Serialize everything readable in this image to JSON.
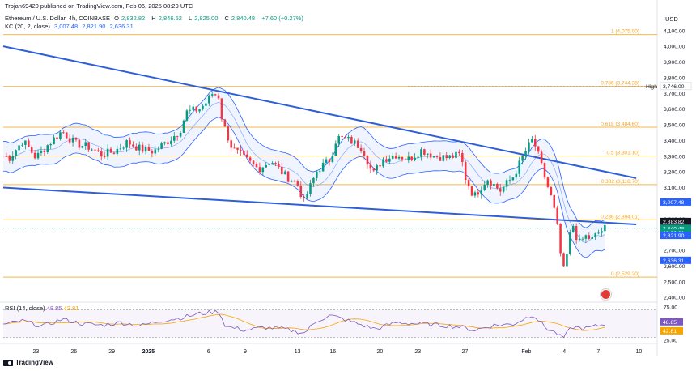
{
  "header": {
    "published": "Trojan69420 published on TradingView.com, Feb 06, 2025 08:29 UTC",
    "symbol": "Ethereum / U.S. Dollar, 4h, COINBASE",
    "ohlc": {
      "o_label": "O",
      "o": "2,832.82",
      "h_label": "H",
      "h": "2,846.52",
      "l_label": "L",
      "l": "2,825.00",
      "c_label": "C",
      "c": "2,840.48",
      "change": "+7.60 (+0.27%)"
    },
    "kc": {
      "label": "KC (20, 2, close)",
      "v1": "3,007.48",
      "v2": "2,821.90",
      "v3": "2,636.31"
    }
  },
  "currency": "USD",
  "price_axis": {
    "ticks": [
      4100,
      4000,
      3900,
      3800,
      3700,
      3600,
      3500,
      3400,
      3300,
      3200,
      3100,
      3000,
      2900,
      2800,
      2700,
      2600,
      2500,
      2400
    ],
    "tick_labels": [
      "4,100.00",
      "4,000.00",
      "3,900.00",
      "3,800.00",
      "3,700.00",
      "3,600.00",
      "3,500.00",
      "3,400.00",
      "3,300.00",
      "3,200.00",
      "3,100.00",
      "3,000.00",
      "2,900.00",
      "2,800.00",
      "2,700.00",
      "2,600.00",
      "2,500.00",
      "2,400.00"
    ],
    "badges": [
      {
        "text": "3,746.00",
        "value": 3746,
        "color": "#ffffff",
        "text_color": "#131722"
      },
      {
        "text": "3,007.48",
        "value": 3007.48,
        "color": "#2962ff",
        "text_color": "#ffffff"
      },
      {
        "text": "2,883.82",
        "value": 2883.82,
        "color": "#131722",
        "text_color": "#ffffff"
      },
      {
        "text": "2,840.48",
        "value": 2840.48,
        "color": "#089981",
        "text_color": "#ffffff"
      },
      {
        "text": "03:30:01",
        "value": 2812,
        "color": "#089981",
        "text_color": "#ffffff"
      },
      {
        "text": "2,821.90",
        "value": 2795,
        "color": "#2962ff",
        "text_color": "#ffffff"
      },
      {
        "text": "2,636.31",
        "value": 2636.31,
        "color": "#2962ff",
        "text_color": "#ffffff"
      }
    ],
    "high_label": "High"
  },
  "fib_levels": [
    {
      "label": "1 (4,075.00)",
      "value": 4075
    },
    {
      "label": "0.786 (3,744.28)",
      "value": 3744.28
    },
    {
      "label": "0.618 (3,484.60)",
      "value": 3484.6
    },
    {
      "label": "0.5 (3,301.10)",
      "value": 3301.1
    },
    {
      "label": "0.382 (3,118.70)",
      "value": 3118.7
    },
    {
      "label": "0.236 (2,894.01)",
      "value": 2894.01
    },
    {
      "label": "0 (2,529.20)",
      "value": 2529.2
    }
  ],
  "date_axis": [
    "23",
    "26",
    "29",
    "2025",
    "6",
    "9",
    "13",
    "16",
    "20",
    "23",
    "27",
    "Feb",
    "4",
    "7",
    "10"
  ],
  "rsi": {
    "label": "RSI (14, close)",
    "value": "48.85",
    "ma": "42.81",
    "axis_labels": [
      "75.00",
      "25.00"
    ],
    "axis_values": [
      75,
      25
    ]
  },
  "chart_data": {
    "type": "candlestick",
    "timeframe": "4h",
    "ylim": [
      2380,
      4140
    ],
    "trendlines": [
      {
        "from": {
          "x": 0,
          "y": 4000
        },
        "to": {
          "x": 1,
          "y": 3160
        }
      },
      {
        "from": {
          "x": 0,
          "y": 3100
        },
        "to": {
          "x": 1,
          "y": 2865
        }
      }
    ],
    "price_path": [
      [
        0,
        3300
      ],
      [
        0.01,
        3290
      ],
      [
        0.03,
        3400
      ],
      [
        0.05,
        3290
      ],
      [
        0.07,
        3380
      ],
      [
        0.09,
        3460
      ],
      [
        0.11,
        3380
      ],
      [
        0.13,
        3360
      ],
      [
        0.15,
        3310
      ],
      [
        0.17,
        3330
      ],
      [
        0.19,
        3390
      ],
      [
        0.21,
        3345
      ],
      [
        0.23,
        3330
      ],
      [
        0.25,
        3390
      ],
      [
        0.27,
        3460
      ],
      [
        0.28,
        3580
      ],
      [
        0.3,
        3600
      ],
      [
        0.31,
        3640
      ],
      [
        0.32,
        3700
      ],
      [
        0.33,
        3680
      ],
      [
        0.335,
        3520
      ],
      [
        0.35,
        3350
      ],
      [
        0.37,
        3280
      ],
      [
        0.39,
        3220
      ],
      [
        0.41,
        3270
      ],
      [
        0.43,
        3180
      ],
      [
        0.45,
        3120
      ],
      [
        0.46,
        3010
      ],
      [
        0.48,
        3210
      ],
      [
        0.5,
        3280
      ],
      [
        0.51,
        3420
      ],
      [
        0.53,
        3400
      ],
      [
        0.55,
        3350
      ],
      [
        0.565,
        3180
      ],
      [
        0.58,
        3280
      ],
      [
        0.6,
        3310
      ],
      [
        0.62,
        3280
      ],
      [
        0.64,
        3340
      ],
      [
        0.66,
        3300
      ],
      [
        0.68,
        3290
      ],
      [
        0.7,
        3310
      ],
      [
        0.705,
        3180
      ],
      [
        0.72,
        3040
      ],
      [
        0.74,
        3160
      ],
      [
        0.76,
        3080
      ],
      [
        0.78,
        3170
      ],
      [
        0.8,
        3340
      ],
      [
        0.81,
        3410
      ],
      [
        0.82,
        3280
      ],
      [
        0.83,
        3140
      ],
      [
        0.84,
        3010
      ],
      [
        0.85,
        2790
      ],
      [
        0.855,
        2540
      ],
      [
        0.86,
        2620
      ],
      [
        0.87,
        2880
      ],
      [
        0.88,
        2740
      ],
      [
        0.89,
        2790
      ],
      [
        0.9,
        2770
      ],
      [
        0.91,
        2810
      ],
      [
        0.92,
        2840
      ]
    ],
    "rsi_path": [
      [
        0,
        48
      ],
      [
        0.03,
        55
      ],
      [
        0.06,
        45
      ],
      [
        0.09,
        58
      ],
      [
        0.12,
        50
      ],
      [
        0.15,
        47
      ],
      [
        0.18,
        52
      ],
      [
        0.21,
        46
      ],
      [
        0.24,
        55
      ],
      [
        0.27,
        60
      ],
      [
        0.3,
        68
      ],
      [
        0.33,
        72
      ],
      [
        0.34,
        45
      ],
      [
        0.37,
        38
      ],
      [
        0.4,
        43
      ],
      [
        0.43,
        40
      ],
      [
        0.46,
        33
      ],
      [
        0.48,
        55
      ],
      [
        0.5,
        65
      ],
      [
        0.52,
        58
      ],
      [
        0.55,
        47
      ],
      [
        0.57,
        40
      ],
      [
        0.6,
        52
      ],
      [
        0.63,
        50
      ],
      [
        0.66,
        48
      ],
      [
        0.7,
        44
      ],
      [
        0.72,
        38
      ],
      [
        0.75,
        47
      ],
      [
        0.78,
        49
      ],
      [
        0.81,
        67
      ],
      [
        0.83,
        42
      ],
      [
        0.85,
        30
      ],
      [
        0.855,
        22
      ],
      [
        0.87,
        44
      ],
      [
        0.89,
        41
      ],
      [
        0.92,
        48.85
      ]
    ]
  }
}
